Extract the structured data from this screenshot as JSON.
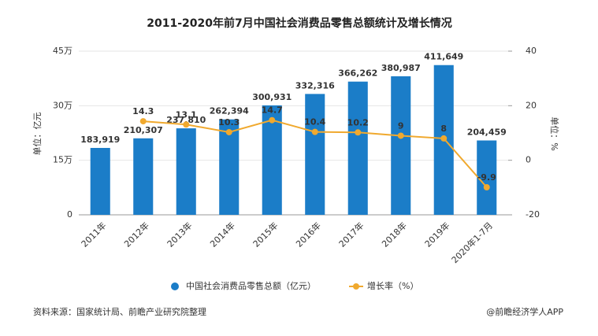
{
  "chart_data": {
    "type": "bar-line",
    "title": "2011-2020年前7月中国社会消费品零售总额统计及增长情况",
    "categories": [
      "2011年",
      "2012年",
      "2013年",
      "2014年",
      "2015年",
      "2016年",
      "2017年",
      "2018年",
      "2019年",
      "2020年1-7月"
    ],
    "y_label": "单位：亿元",
    "y2_label": "单位：%",
    "ylim": [
      0,
      450000
    ],
    "yticks": [
      0,
      {
        "value": 150000,
        "label": "15万"
      },
      {
        "value": 300000,
        "label": "30万"
      },
      {
        "value": 450000,
        "label": "45万"
      }
    ],
    "y2lim": [
      -20,
      40
    ],
    "y2ticks": [
      -20,
      0,
      20,
      40
    ],
    "series": [
      {
        "name": "中国社会消费品零售总额（亿元）",
        "color": "#1b7dc8",
        "kind": "bar",
        "values": [
          183919,
          210307,
          237810,
          262394,
          300931,
          332316,
          366262,
          380987,
          411649,
          204459
        ],
        "value_labels": [
          "183,919",
          "210,307",
          "237,810",
          "262,394",
          "300,931",
          "332,316",
          "366,262",
          "380,987",
          "411,649",
          "204,459"
        ]
      },
      {
        "name": "增长率（%）",
        "color": "#f0a92e",
        "kind": "line",
        "axis": "y2",
        "values": [
          null,
          14.3,
          13.1,
          10.3,
          14.7,
          10.4,
          10.2,
          9,
          8,
          -9.9
        ]
      }
    ],
    "source": "资料来源：国家统计局、前瞻产业研究院整理",
    "credit": "@前瞻经济学人APP"
  }
}
